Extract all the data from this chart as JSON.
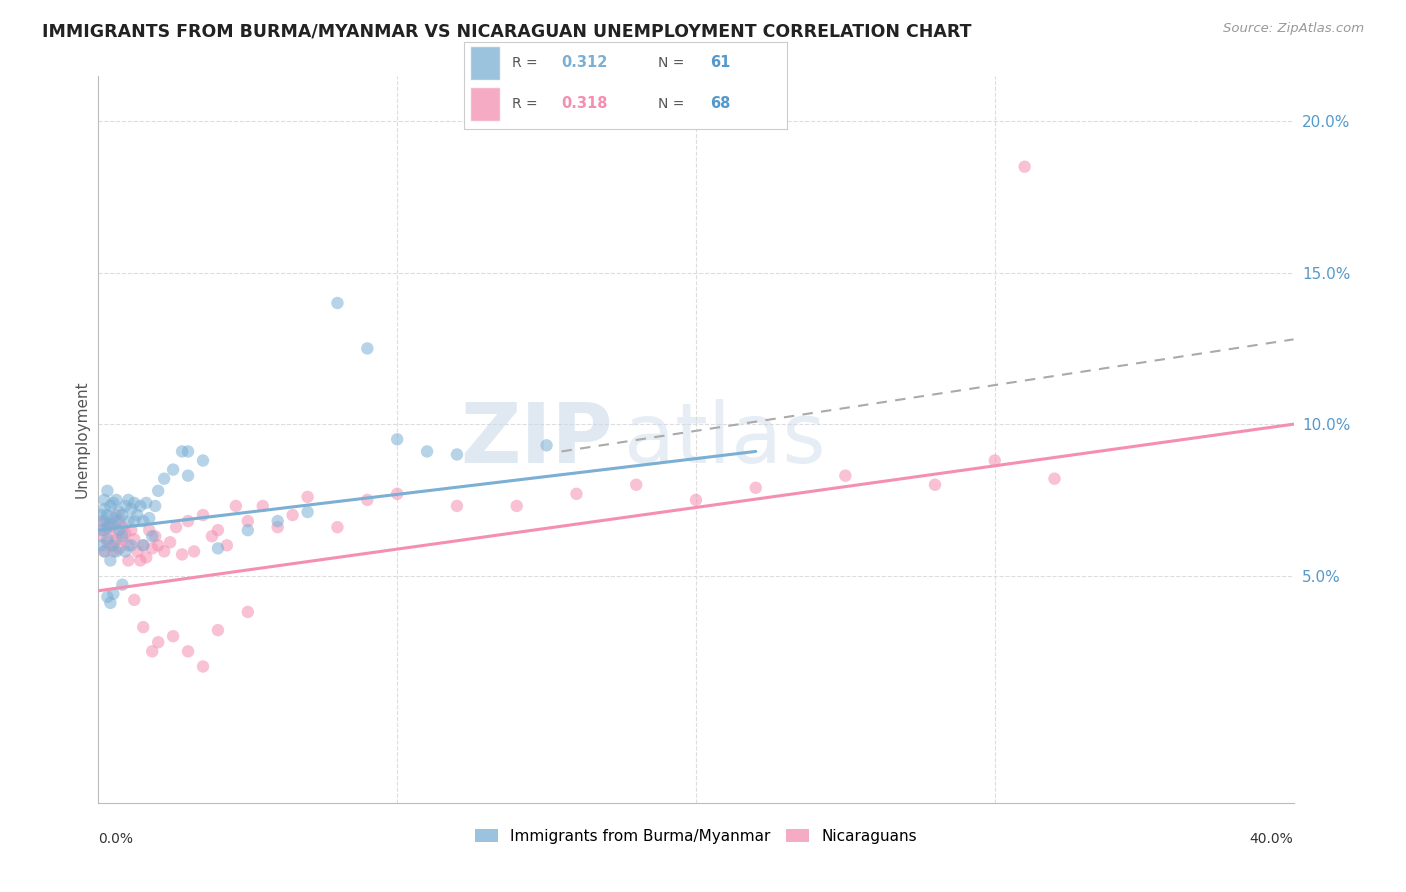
{
  "title": "IMMIGRANTS FROM BURMA/MYANMAR VS NICARAGUAN UNEMPLOYMENT CORRELATION CHART",
  "source": "Source: ZipAtlas.com",
  "ylabel": "Unemployment",
  "x_min": 0.0,
  "x_max": 0.4,
  "y_min": -0.025,
  "y_max": 0.215,
  "y_ticks": [
    0.05,
    0.1,
    0.15,
    0.2
  ],
  "y_tick_labels": [
    "5.0%",
    "10.0%",
    "15.0%",
    "20.0%"
  ],
  "blue_R": 0.312,
  "blue_N": 61,
  "pink_R": 0.318,
  "pink_N": 68,
  "blue_color": "#7BAFD4",
  "pink_color": "#F48FB1",
  "legend_blue_label": "Immigrants from Burma/Myanmar",
  "legend_pink_label": "Nicaraguans",
  "blue_scatter_x": [
    0.001,
    0.001,
    0.001,
    0.002,
    0.002,
    0.002,
    0.002,
    0.003,
    0.003,
    0.003,
    0.003,
    0.004,
    0.004,
    0.004,
    0.005,
    0.005,
    0.005,
    0.006,
    0.006,
    0.006,
    0.007,
    0.007,
    0.008,
    0.008,
    0.009,
    0.009,
    0.01,
    0.01,
    0.011,
    0.011,
    0.012,
    0.012,
    0.013,
    0.014,
    0.015,
    0.015,
    0.016,
    0.017,
    0.018,
    0.019,
    0.02,
    0.022,
    0.025,
    0.028,
    0.03,
    0.035,
    0.04,
    0.05,
    0.06,
    0.07,
    0.08,
    0.09,
    0.1,
    0.11,
    0.12,
    0.15,
    0.03,
    0.008,
    0.005,
    0.004,
    0.003
  ],
  "blue_scatter_y": [
    0.065,
    0.07,
    0.06,
    0.068,
    0.072,
    0.058,
    0.075,
    0.066,
    0.07,
    0.062,
    0.078,
    0.067,
    0.073,
    0.055,
    0.069,
    0.074,
    0.06,
    0.068,
    0.075,
    0.058,
    0.071,
    0.065,
    0.07,
    0.063,
    0.073,
    0.058,
    0.075,
    0.068,
    0.072,
    0.06,
    0.068,
    0.074,
    0.07,
    0.073,
    0.068,
    0.06,
    0.074,
    0.069,
    0.063,
    0.073,
    0.078,
    0.082,
    0.085,
    0.091,
    0.083,
    0.088,
    0.059,
    0.065,
    0.068,
    0.071,
    0.14,
    0.125,
    0.095,
    0.091,
    0.09,
    0.093,
    0.091,
    0.047,
    0.044,
    0.041,
    0.043
  ],
  "pink_scatter_x": [
    0.001,
    0.001,
    0.002,
    0.002,
    0.003,
    0.003,
    0.004,
    0.004,
    0.005,
    0.005,
    0.006,
    0.006,
    0.007,
    0.007,
    0.008,
    0.008,
    0.009,
    0.01,
    0.011,
    0.012,
    0.013,
    0.014,
    0.015,
    0.016,
    0.017,
    0.018,
    0.019,
    0.02,
    0.022,
    0.024,
    0.026,
    0.028,
    0.03,
    0.032,
    0.035,
    0.038,
    0.04,
    0.043,
    0.046,
    0.05,
    0.055,
    0.06,
    0.065,
    0.07,
    0.08,
    0.09,
    0.1,
    0.12,
    0.14,
    0.16,
    0.18,
    0.2,
    0.22,
    0.25,
    0.28,
    0.3,
    0.32,
    0.31,
    0.01,
    0.012,
    0.015,
    0.018,
    0.02,
    0.025,
    0.03,
    0.035,
    0.04,
    0.05
  ],
  "pink_scatter_y": [
    0.063,
    0.068,
    0.058,
    0.065,
    0.061,
    0.067,
    0.06,
    0.066,
    0.058,
    0.064,
    0.062,
    0.07,
    0.059,
    0.068,
    0.062,
    0.066,
    0.064,
    0.06,
    0.065,
    0.062,
    0.058,
    0.055,
    0.06,
    0.056,
    0.065,
    0.059,
    0.063,
    0.06,
    0.058,
    0.061,
    0.066,
    0.057,
    0.068,
    0.058,
    0.07,
    0.063,
    0.065,
    0.06,
    0.073,
    0.068,
    0.073,
    0.066,
    0.07,
    0.076,
    0.066,
    0.075,
    0.077,
    0.073,
    0.073,
    0.077,
    0.08,
    0.075,
    0.079,
    0.083,
    0.08,
    0.088,
    0.082,
    0.185,
    0.055,
    0.042,
    0.033,
    0.025,
    0.028,
    0.03,
    0.025,
    0.02,
    0.032,
    0.038
  ],
  "blue_line_x": [
    0.0,
    0.22
  ],
  "blue_line_y": [
    0.065,
    0.091
  ],
  "pink_line_x": [
    0.0,
    0.4
  ],
  "pink_line_y": [
    0.045,
    0.1
  ],
  "dash_line_x": [
    0.155,
    0.4
  ],
  "dash_line_y": [
    0.091,
    0.128
  ],
  "watermark_part1": "ZIP",
  "watermark_part2": "atlas",
  "background_color": "#FFFFFF",
  "grid_color": "#DDDDDD"
}
